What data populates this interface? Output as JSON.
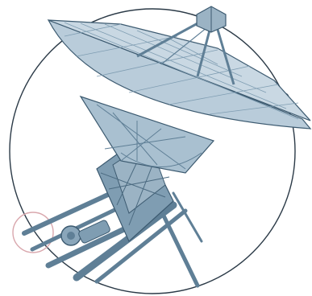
{
  "image": {
    "subject": "radio-telescope-dish",
    "palette": {
      "steel": "#6f8fa6",
      "steel_dark": "#3c5a70",
      "steel_light": "#a9c0d0",
      "dish_fill": "#c9d8e3",
      "ring": "#2b3a47",
      "dot": "#2b3a47",
      "accent_ring": "#d9a7ad"
    }
  }
}
